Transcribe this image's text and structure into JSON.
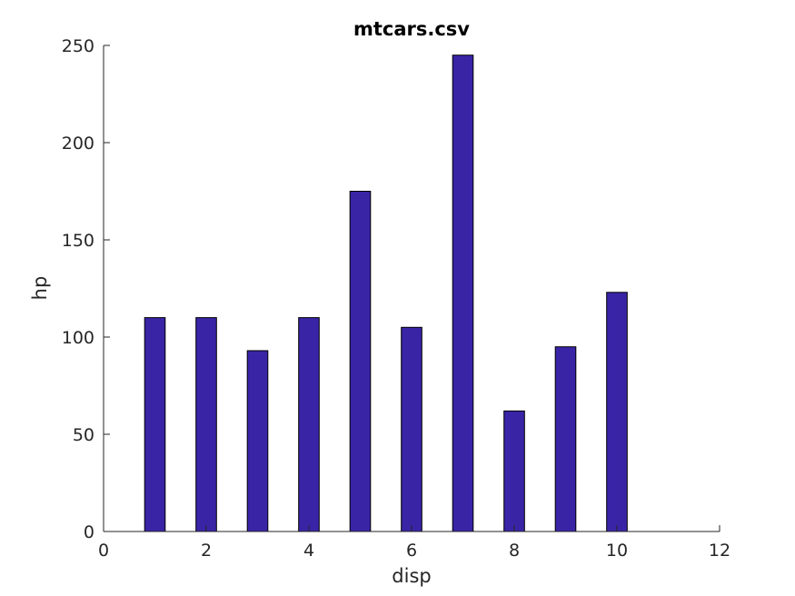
{
  "chart_data": {
    "type": "bar",
    "title": "mtcars.csv",
    "xlabel": "disp",
    "ylabel": "hp",
    "x": [
      1,
      2,
      3,
      4,
      5,
      6,
      7,
      8,
      9,
      10
    ],
    "values": [
      110,
      110,
      93,
      110,
      175,
      105,
      245,
      62,
      95,
      123
    ],
    "xlim": [
      0,
      12
    ],
    "ylim": [
      0,
      250
    ],
    "xticks": [
      0,
      2,
      4,
      6,
      8,
      10,
      12
    ],
    "yticks": [
      0,
      50,
      100,
      150,
      200,
      250
    ],
    "bar_color": "#3a24a6",
    "grid": false,
    "box": "left-bottom"
  }
}
